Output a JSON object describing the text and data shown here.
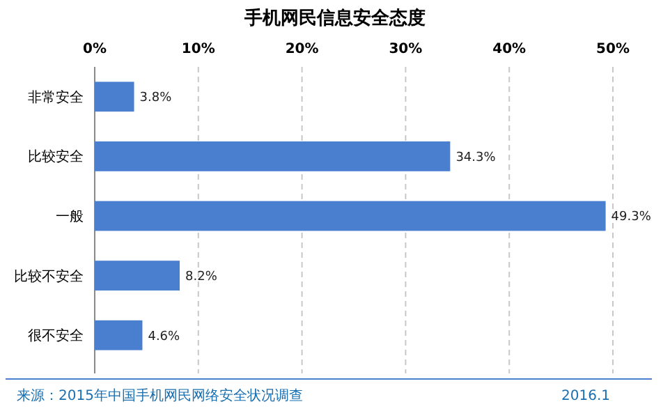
{
  "chart_data": {
    "type": "bar",
    "orientation": "horizontal",
    "title": "手机网民信息安全态度",
    "categories": [
      "非常安全",
      "比较安全",
      "一般",
      "比较不安全",
      "很不安全"
    ],
    "values": [
      3.8,
      34.3,
      49.3,
      8.2,
      4.6
    ],
    "value_labels": [
      "3.8%",
      "34.3%",
      "49.3%",
      "8.2%",
      "4.6%"
    ],
    "color": "#4a7fd0",
    "xlim": [
      0,
      50
    ],
    "xticks": [
      {
        "value": 0,
        "label": "0%"
      },
      {
        "value": 10,
        "label": "10%"
      },
      {
        "value": 20,
        "label": "20%"
      },
      {
        "value": 30,
        "label": "30%"
      },
      {
        "value": 40,
        "label": "40%"
      },
      {
        "value": 50,
        "label": "50%"
      }
    ],
    "grid": "x",
    "annotations": [
      "来源：2015年中国手机网民网络安全状况调查",
      "2016.1"
    ]
  }
}
